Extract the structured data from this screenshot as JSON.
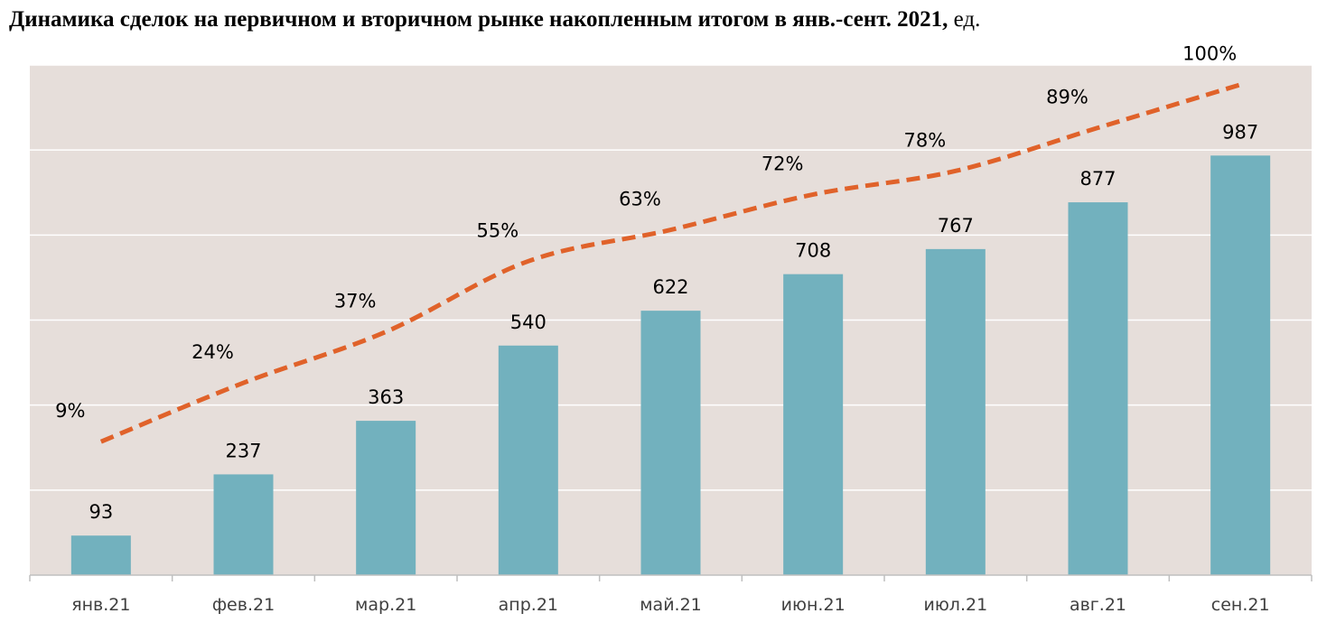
{
  "title": {
    "main": "Динамика сделок на первичном и вторичном рынке накопленным итогом в янв.-сент. 2021,",
    "unit": "ед."
  },
  "chart_data": {
    "type": "bar",
    "title": "Динамика сделок на первичном и вторичном рынке накопленным итогом в янв.-сент. 2021, ед.",
    "categories": [
      "янв.21",
      "фев.21",
      "мар.21",
      "апр.21",
      "май.21",
      "июн.21",
      "июл.21",
      "авг.21",
      "сен.21"
    ],
    "series": [
      {
        "type": "bar",
        "values": [
          93,
          237,
          363,
          540,
          622,
          708,
          767,
          877,
          987
        ],
        "color": "#72b1be"
      },
      {
        "type": "line",
        "style": "dashed",
        "values": [
          9,
          24,
          37,
          55,
          63,
          72,
          78,
          89,
          100
        ],
        "labels": [
          "9%",
          "24%",
          "37%",
          "55%",
          "63%",
          "72%",
          "78%",
          "89%",
          "100%"
        ],
        "color": "#e0622a"
      }
    ],
    "ylim": [
      0,
      1200
    ],
    "y2lim": [
      -25,
      105
    ],
    "grid": true,
    "plot_background": "#e6deda"
  }
}
